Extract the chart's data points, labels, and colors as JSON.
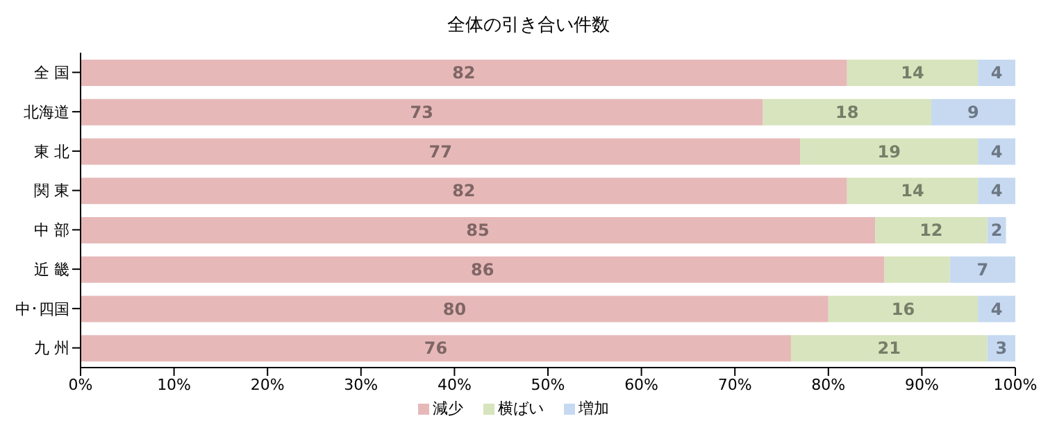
{
  "chart_data": {
    "type": "bar",
    "orientation": "horizontal",
    "stacked": true,
    "title": "全体の引き合い件数",
    "categories": [
      "全 国",
      "北海道",
      "東 北",
      "関 東",
      "中 部",
      "近 畿",
      "中･四国",
      "九 州"
    ],
    "series": [
      {
        "name": "減少",
        "color": "#e6b9b8",
        "values": [
          82,
          73,
          77,
          82,
          85,
          86,
          80,
          76
        ],
        "value_labels": [
          "82",
          "73",
          "77",
          "82",
          "85",
          "86",
          "80",
          "76"
        ]
      },
      {
        "name": "横ばい",
        "color": "#d7e4bd",
        "values": [
          14,
          18,
          19,
          14,
          12,
          7,
          16,
          21
        ],
        "value_labels": [
          "14",
          "18",
          "19",
          "14",
          "12",
          null,
          "16",
          "21"
        ]
      },
      {
        "name": "増加",
        "color": "#c6d9f1",
        "values": [
          4,
          9,
          4,
          4,
          2,
          7,
          4,
          3
        ],
        "value_labels": [
          "4",
          "9",
          "4",
          "4",
          "2",
          "7",
          "4",
          "3"
        ]
      }
    ],
    "xlim": [
      0,
      100
    ],
    "xticks": [
      {
        "value": 0,
        "label": "0%"
      },
      {
        "value": 10,
        "label": "10%"
      },
      {
        "value": 20,
        "label": "20%"
      },
      {
        "value": 30,
        "label": "30%"
      },
      {
        "value": 40,
        "label": "40%"
      },
      {
        "value": 50,
        "label": "50%"
      },
      {
        "value": 60,
        "label": "60%"
      },
      {
        "value": 70,
        "label": "70%"
      },
      {
        "value": 80,
        "label": "80%"
      },
      {
        "value": 90,
        "label": "90%"
      },
      {
        "value": 100,
        "label": "100%"
      }
    ],
    "grid": false,
    "legend": "bottom"
  }
}
